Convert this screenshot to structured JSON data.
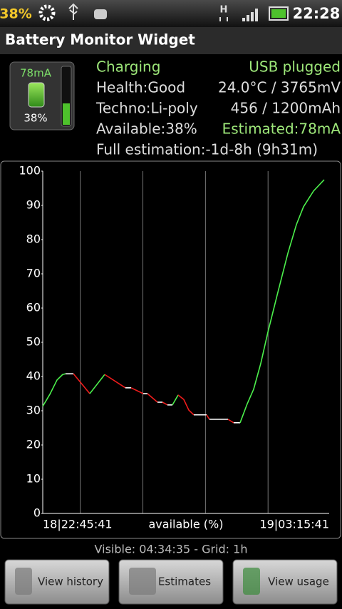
{
  "status_bar": {
    "battery": "38%",
    "network": "H",
    "clock": "22:28"
  },
  "header": {
    "title": "Battery Monitor Widget"
  },
  "widget": {
    "current": "78mA",
    "level": "38%"
  },
  "info": {
    "rows": [
      [
        "Charging",
        "USB plugged"
      ],
      [
        "Health:Good",
        "24.0°C / 3765mV"
      ],
      [
        "Techno:Li-poly",
        "456 / 1200mAh"
      ],
      [
        "Available:38%",
        "Estimated:78mA"
      ]
    ],
    "full_estimation": "Full estimation:-1d-8h (9h31m)"
  },
  "chart_data": {
    "type": "line",
    "x_start_label": "18|22:45:41",
    "x_end_label": "19|03:15:41",
    "xlabel": "available (%)",
    "xlim": [
      0,
      274.6
    ],
    "x_grid": [
      36,
      96,
      156,
      216
    ],
    "ylim": [
      0,
      100
    ],
    "yticks": [
      0,
      10,
      20,
      30,
      40,
      50,
      60,
      70,
      80,
      90,
      100
    ],
    "series": [
      {
        "color": "#4cf04c",
        "x": [
          0,
          6.8,
          13.7,
          19.1,
          21.9
        ],
        "values": [
          31.3,
          34.8,
          39,
          40.6,
          40.8
        ]
      },
      {
        "color": "#ffffff",
        "x": [
          21.9,
          29.4
        ],
        "values": [
          40.8,
          40.8
        ]
      },
      {
        "color": "#f01c1c",
        "x": [
          29.4,
          45.1
        ],
        "values": [
          40.8,
          35
        ]
      },
      {
        "color": "#4cf04c",
        "x": [
          45.1,
          59.4
        ],
        "values": [
          35,
          40.6
        ]
      },
      {
        "color": "#f01c1c",
        "x": [
          59.4,
          79.2
        ],
        "values": [
          40.6,
          36.7
        ]
      },
      {
        "color": "#ffffff",
        "x": [
          79.2,
          84.7
        ],
        "values": [
          36.7,
          36.7
        ]
      },
      {
        "color": "#f01c1c",
        "x": [
          84.7,
          96.3
        ],
        "values": [
          36.7,
          35
        ]
      },
      {
        "color": "#ffffff",
        "x": [
          96.3,
          100.4
        ],
        "values": [
          35,
          35
        ]
      },
      {
        "color": "#f01c1c",
        "x": [
          100.4,
          110
        ],
        "values": [
          35,
          32.5
        ]
      },
      {
        "color": "#ffffff",
        "x": [
          110,
          114.8
        ],
        "values": [
          32.5,
          32.5
        ]
      },
      {
        "color": "#f01c1c",
        "x": [
          114.8,
          119.5
        ],
        "values": [
          32.5,
          31.7
        ]
      },
      {
        "color": "#ffffff",
        "x": [
          119.5,
          124.3
        ],
        "values": [
          31.7,
          31.7
        ]
      },
      {
        "color": "#4cf04c",
        "x": [
          124.3,
          129.8
        ],
        "values": [
          31.7,
          34.6
        ]
      },
      {
        "color": "#f01c1c",
        "x": [
          129.8,
          135.2,
          140,
          144.8
        ],
        "values": [
          34.6,
          33.3,
          30.2,
          28.8
        ]
      },
      {
        "color": "#ffffff",
        "x": [
          144.8,
          157.1
        ],
        "values": [
          28.8,
          28.8
        ]
      },
      {
        "color": "#f01c1c",
        "x": [
          157.1,
          159.8
        ],
        "values": [
          28.8,
          27.5
        ]
      },
      {
        "color": "#ffffff",
        "x": [
          159.8,
          177.6
        ],
        "values": [
          27.5,
          27.5
        ]
      },
      {
        "color": "#f01c1c",
        "x": [
          177.6,
          183
        ],
        "values": [
          27.5,
          26.5
        ]
      },
      {
        "color": "#ffffff",
        "x": [
          183,
          189.2
        ],
        "values": [
          26.5,
          26.5
        ]
      },
      {
        "color": "#4cf04c",
        "x": [
          189.2,
          196,
          202.2,
          209,
          215.8,
          225.4,
          235,
          243.2,
          250,
          259.6,
          269.8
        ],
        "values": [
          26.5,
          32,
          36.3,
          43.8,
          52.9,
          64.6,
          76,
          84.4,
          89.6,
          94.2,
          97.5
        ]
      }
    ]
  },
  "footer": {
    "visible": "Visible: 04:34:35 - Grid: 1h"
  },
  "buttons": [
    "View history",
    "Estimates",
    "View usage"
  ]
}
